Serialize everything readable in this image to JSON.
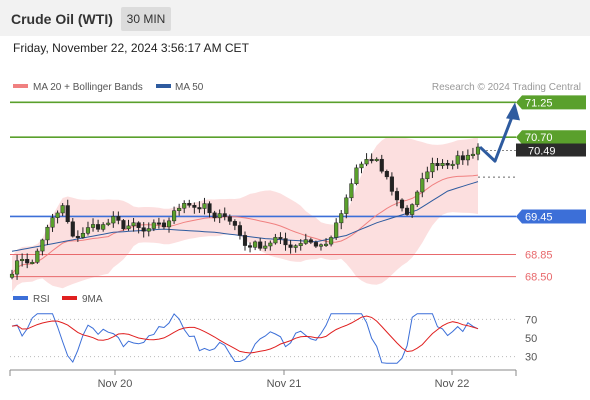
{
  "header": {
    "title": "Crude Oil (WTI)",
    "timeframe": "30 MIN"
  },
  "datetime": "Friday, November 22, 2024 3:56:17 AM CET",
  "colors": {
    "resistance": "#5aa02c",
    "pivot": "#3c6fd8",
    "support": "#e8696c",
    "price_tag": "#2b2b2b",
    "ma20": "#f08080",
    "ma50": "#2e5b9f",
    "bands": "#f9c4c4",
    "rsi": "#3c6fd8",
    "rsi_ma": "#e02020",
    "arrow": "#2e5b9f"
  },
  "chart_data": [
    {
      "type": "candlestick",
      "legend": [
        {
          "name": "MA 20 + Bollinger Bands",
          "color": "#f08080"
        },
        {
          "name": "MA 50",
          "color": "#2e5b9f"
        }
      ],
      "credit": "Research © 2024 Trading Central",
      "x_ticks": [
        "Nov 20",
        "Nov 21",
        "Nov 22"
      ],
      "ylim": [
        68.4,
        71.35
      ],
      "last_price": 70.49,
      "levels": [
        {
          "value": 71.25,
          "label": "71.25",
          "kind": "resistance"
        },
        {
          "value": 70.7,
          "label": "70.70",
          "kind": "resistance"
        },
        {
          "value": 69.45,
          "label": "69.45",
          "kind": "pivot"
        },
        {
          "value": 68.85,
          "label": "68.85",
          "kind": "support"
        },
        {
          "value": 68.5,
          "label": "68.50",
          "kind": "support"
        }
      ],
      "scenario": {
        "path_to": [
          70.07,
          71.25
        ],
        "meaning": "down then up"
      },
      "path": [
        [
          0,
          68.6
        ],
        [
          2,
          68.8
        ],
        [
          4,
          68.7
        ],
        [
          6,
          69.1
        ],
        [
          8,
          69.4
        ],
        [
          10,
          69.6
        ],
        [
          12,
          69.1
        ],
        [
          14,
          69.2
        ],
        [
          16,
          69.3
        ],
        [
          18,
          69.3
        ],
        [
          20,
          69.4
        ],
        [
          22,
          69.3
        ],
        [
          24,
          69.3
        ],
        [
          26,
          69.2
        ],
        [
          28,
          69.3
        ],
        [
          30,
          69.3
        ],
        [
          32,
          69.5
        ],
        [
          34,
          69.7
        ],
        [
          36,
          69.6
        ],
        [
          38,
          69.6
        ],
        [
          40,
          69.4
        ],
        [
          42,
          69.5
        ],
        [
          44,
          69.3
        ],
        [
          46,
          69.0
        ],
        [
          48,
          69.0
        ],
        [
          50,
          69.0
        ],
        [
          52,
          69.1
        ],
        [
          54,
          69.0
        ],
        [
          56,
          69.0
        ],
        [
          58,
          69.1
        ],
        [
          60,
          69.0
        ],
        [
          62,
          69.0
        ],
        [
          64,
          69.3
        ],
        [
          66,
          69.7
        ],
        [
          68,
          70.2
        ],
        [
          70,
          70.35
        ],
        [
          72,
          70.3
        ],
        [
          74,
          70.05
        ],
        [
          76,
          69.7
        ],
        [
          78,
          69.5
        ],
        [
          80,
          69.8
        ],
        [
          82,
          70.2
        ],
        [
          84,
          70.3
        ],
        [
          86,
          70.3
        ],
        [
          88,
          70.35
        ],
        [
          90,
          70.4
        ],
        [
          92,
          70.55
        ]
      ],
      "ma50": [
        [
          0,
          68.9
        ],
        [
          10,
          69.05
        ],
        [
          20,
          69.2
        ],
        [
          30,
          69.25
        ],
        [
          40,
          69.2
        ],
        [
          50,
          69.1
        ],
        [
          60,
          69.05
        ],
        [
          66,
          69.15
        ],
        [
          72,
          69.35
        ],
        [
          80,
          69.55
        ],
        [
          86,
          69.85
        ],
        [
          92,
          70.0
        ]
      ]
    },
    {
      "type": "line",
      "legend": [
        {
          "name": "RSI",
          "color": "#3c6fd8"
        },
        {
          "name": "9MA",
          "color": "#e02020"
        }
      ],
      "ylim": [
        20,
        80
      ],
      "y_ticks": [
        {
          "value": 70,
          "label": "70"
        },
        {
          "value": 50,
          "label": "50"
        },
        {
          "value": 30,
          "label": "30"
        }
      ]
    }
  ]
}
